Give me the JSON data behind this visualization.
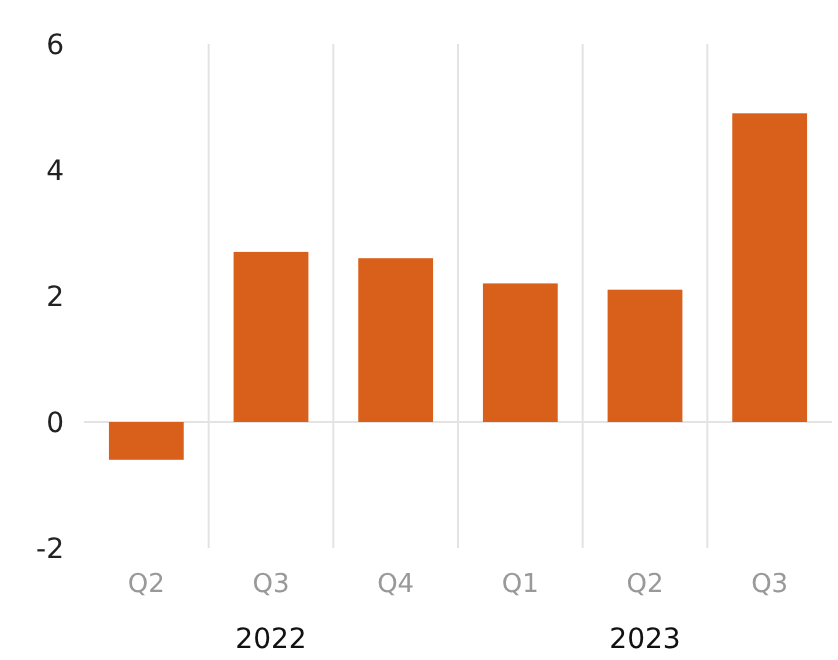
{
  "chart_data": {
    "type": "bar",
    "categories": [
      "Q2",
      "Q3",
      "Q4",
      "Q1",
      "Q2",
      "Q3"
    ],
    "values": [
      -0.6,
      2.7,
      2.6,
      2.2,
      2.1,
      4.9
    ],
    "color": "#d9601a",
    "ylim": [
      -2,
      6
    ],
    "yticks": [
      -2,
      0,
      2,
      4,
      6
    ],
    "grid": "x",
    "annotations": [
      "2022",
      "2023"
    ],
    "ref_lines": [
      {
        "axis": "y",
        "value": 0,
        "color": "#e3e3e3"
      }
    ]
  }
}
